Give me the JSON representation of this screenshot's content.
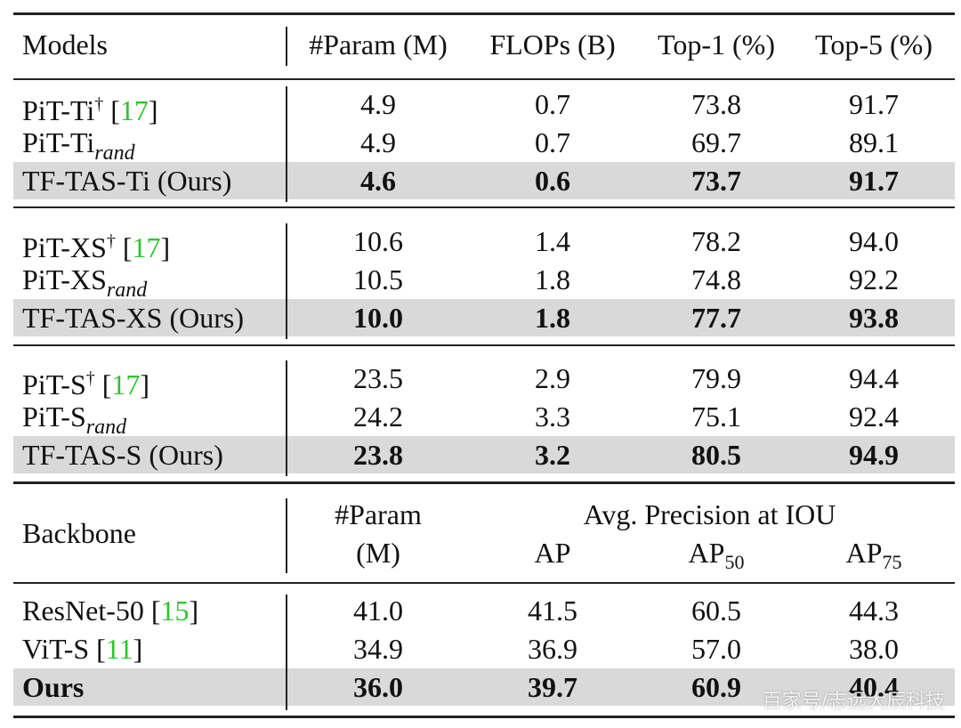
{
  "table1": {
    "header": [
      "Models",
      "#Param (M)",
      "FLOPs (B)",
      "Top-1 (%)",
      "Top-5 (%)"
    ],
    "groups": [
      [
        {
          "model": [
            {
              "t": "PiT-Ti"
            },
            {
              "t": "†",
              "style": "sup"
            },
            {
              "t": " ["
            },
            {
              "t": "17",
              "style": "cite"
            },
            {
              "t": "]"
            }
          ],
          "cells": [
            "4.9",
            "0.7",
            "73.8",
            "91.7"
          ],
          "highlight": false
        },
        {
          "model": [
            {
              "t": "PiT-Ti"
            },
            {
              "t": "rand",
              "style": "math-sub"
            }
          ],
          "cells": [
            "4.9",
            "0.7",
            "69.7",
            "89.1"
          ],
          "highlight": false
        },
        {
          "model": [
            {
              "t": "TF-TAS-Ti (Ours)"
            }
          ],
          "cells": [
            "4.6",
            "0.6",
            "73.7",
            "91.7"
          ],
          "highlight": true
        }
      ],
      [
        {
          "model": [
            {
              "t": "PiT-XS"
            },
            {
              "t": "†",
              "style": "sup"
            },
            {
              "t": " ["
            },
            {
              "t": "17",
              "style": "cite"
            },
            {
              "t": "]"
            }
          ],
          "cells": [
            "10.6",
            "1.4",
            "78.2",
            "94.0"
          ],
          "highlight": false
        },
        {
          "model": [
            {
              "t": "PiT-XS"
            },
            {
              "t": "rand",
              "style": "math-sub"
            }
          ],
          "cells": [
            "10.5",
            "1.8",
            "74.8",
            "92.2"
          ],
          "highlight": false
        },
        {
          "model": [
            {
              "t": "TF-TAS-XS (Ours)"
            }
          ],
          "cells": [
            "10.0",
            "1.8",
            "77.7",
            "93.8"
          ],
          "highlight": true
        }
      ],
      [
        {
          "model": [
            {
              "t": "PiT-S"
            },
            {
              "t": "†",
              "style": "sup"
            },
            {
              "t": " ["
            },
            {
              "t": "17",
              "style": "cite"
            },
            {
              "t": "]"
            }
          ],
          "cells": [
            "23.5",
            "2.9",
            "79.9",
            "94.4"
          ],
          "highlight": false
        },
        {
          "model": [
            {
              "t": "PiT-S"
            },
            {
              "t": "rand",
              "style": "math-sub"
            }
          ],
          "cells": [
            "24.2",
            "3.3",
            "75.1",
            "92.4"
          ],
          "highlight": false
        },
        {
          "model": [
            {
              "t": "TF-TAS-S (Ours)"
            }
          ],
          "cells": [
            "23.8",
            "3.2",
            "80.5",
            "94.9"
          ],
          "highlight": true
        }
      ]
    ]
  },
  "table2": {
    "header": {
      "backbone": "Backbone",
      "param": [
        "#Param",
        "(M)"
      ],
      "group": "Avg. Precision at IOU",
      "sub": [
        [
          {
            "t": "AP"
          }
        ],
        [
          {
            "t": "AP"
          },
          {
            "t": "50",
            "style": "sub"
          }
        ],
        [
          {
            "t": "AP"
          },
          {
            "t": "75",
            "style": "sub"
          }
        ]
      ]
    },
    "rows": [
      {
        "model": [
          {
            "t": "ResNet-50 ["
          },
          {
            "t": "15",
            "style": "cite"
          },
          {
            "t": "]"
          }
        ],
        "cells": [
          "41.0",
          "41.5",
          "60.5",
          "44.3"
        ],
        "highlight": false
      },
      {
        "model": [
          {
            "t": "ViT-S ["
          },
          {
            "t": "11",
            "style": "cite"
          },
          {
            "t": "]"
          }
        ],
        "cells": [
          "34.9",
          "36.9",
          "57.0",
          "38.0"
        ],
        "highlight": false
      },
      {
        "model": [
          {
            "t": "Ours"
          }
        ],
        "cells": [
          "36.0",
          "39.7",
          "60.9",
          "40.4"
        ],
        "highlight": true,
        "bold_model": true
      }
    ]
  },
  "watermark": "百家号/志远大辰科技"
}
